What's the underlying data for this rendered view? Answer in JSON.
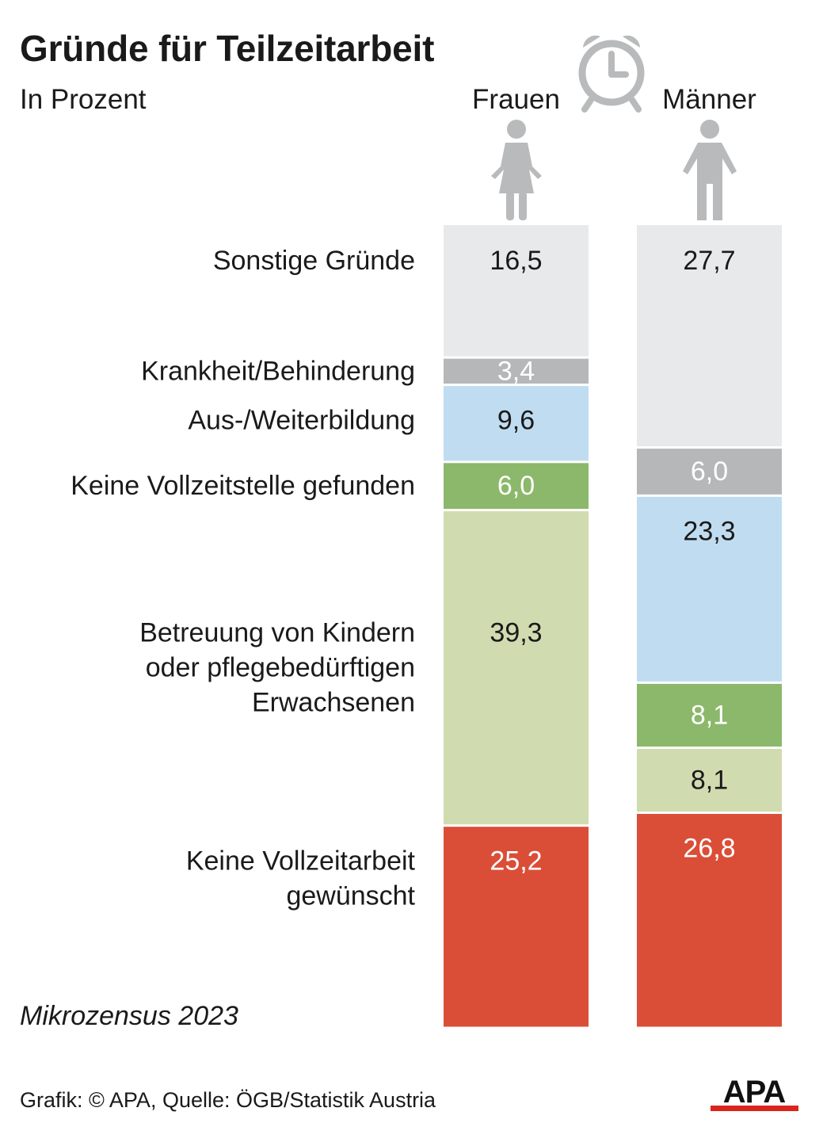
{
  "title": "Gründe für Teilzeitarbeit",
  "subtitle": "In Prozent",
  "note": "Mikrozensus 2023",
  "footer": "Grafik: © APA, Quelle: ÖGB/Statistik Austria",
  "logo_text": "APA",
  "icons": [
    "alarm-clock-icon",
    "woman-icon",
    "man-icon"
  ],
  "colors": {
    "Sonstige Gründe": "#e8e9ea",
    "Krankheit/Behinderung": "#b6b7b8",
    "Aus-/Weiterbildung": "#c0dcf0",
    "Keine Vollzeitstelle gefunden": "#8bb86a",
    "Betreuung von Kindern oder pflegebedürftigen Erwachsenen": "#d1dbb0",
    "Keine Vollzeitarbeit gewünscht": "#da4e38"
  },
  "chart_data": {
    "type": "bar",
    "stacked": true,
    "title": "Gründe für Teilzeitarbeit",
    "subtitle": "In Prozent",
    "categories": [
      "Frauen",
      "Männer"
    ],
    "series": [
      {
        "name": "Keine Vollzeitarbeit gewünscht",
        "values": [
          25.2,
          26.8
        ],
        "labels": [
          "25,2",
          "26,8"
        ],
        "label_color": "#ffffff"
      },
      {
        "name": "Betreuung von Kindern oder pflegebedürftigen Erwachsenen",
        "values": [
          39.3,
          8.1
        ],
        "labels": [
          "39,3",
          "8,1"
        ],
        "label_color": "#1a1a1a"
      },
      {
        "name": "Keine Vollzeitstelle gefunden",
        "values": [
          6.0,
          8.1
        ],
        "labels": [
          "6,0",
          "8,1"
        ],
        "label_color": "#ffffff"
      },
      {
        "name": "Aus-/Weiterbildung",
        "values": [
          9.6,
          23.3
        ],
        "labels": [
          "9,6",
          "23,3"
        ],
        "label_color": "#1a1a1a"
      },
      {
        "name": "Krankheit/Behinderung",
        "values": [
          3.4,
          6.0
        ],
        "labels": [
          "3,4",
          "6,0"
        ],
        "label_color": "#ffffff"
      },
      {
        "name": "Sonstige Gründe",
        "values": [
          16.5,
          27.7
        ],
        "labels": [
          "16,5",
          "27,7"
        ],
        "label_color": "#1a1a1a"
      }
    ],
    "category_labels": [
      {
        "series": "Sonstige Gründe",
        "lines": [
          "Sonstige Gründe"
        ]
      },
      {
        "series": "Krankheit/Behinderung",
        "lines": [
          "Krankheit/Behinderung"
        ]
      },
      {
        "series": "Aus-/Weiterbildung",
        "lines": [
          "Aus-/Weiterbildung"
        ]
      },
      {
        "series": "Keine Vollzeitstelle gefunden",
        "lines": [
          "Keine Vollzeitstelle gefunden"
        ]
      },
      {
        "series": "Betreuung von Kindern oder pflegebedürftigen Erwachsenen",
        "lines": [
          "Betreuung von Kindern",
          "oder pflegebedürftigen",
          "Erwachsenen"
        ]
      },
      {
        "series": "Keine Vollzeitarbeit gewünscht",
        "lines": [
          "Keine Vollzeitarbeit",
          "gewünscht"
        ]
      }
    ],
    "ylim": [
      0,
      100
    ],
    "legend": "none",
    "grid": false
  }
}
